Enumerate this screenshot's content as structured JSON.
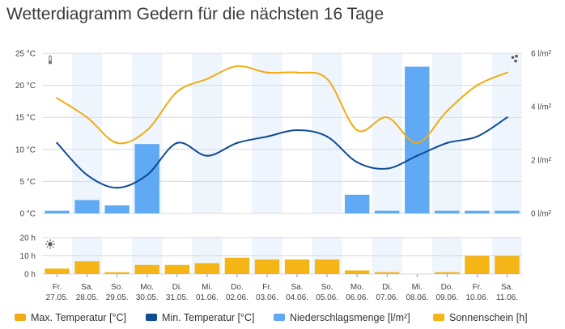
{
  "title": "Wetterdiagramm Gedern für die nächsten 16 Tage",
  "colors": {
    "max_temp": "#f2ab12",
    "min_temp": "#0f4c96",
    "precip": "#5fa9f5",
    "sunshine": "#f5b516",
    "stripe": "#eef5fd",
    "grid": "#d9d9d9"
  },
  "icons": {
    "temperature": "thermometer-icon",
    "precipitation": "raindrops-icon",
    "sunshine": "sun-icon"
  },
  "chart_data": [
    {
      "type": "line+bar",
      "categories": [
        [
          "Fr.",
          "27.05."
        ],
        [
          "Sa.",
          "28.05."
        ],
        [
          "So.",
          "29.05."
        ],
        [
          "Mo.",
          "30.05."
        ],
        [
          "Di.",
          "31.05."
        ],
        [
          "Mi.",
          "01.06."
        ],
        [
          "Do.",
          "02.06."
        ],
        [
          "Fr.",
          "03.06."
        ],
        [
          "Sa.",
          "04.06."
        ],
        [
          "So.",
          "05.06."
        ],
        [
          "Mo.",
          "06.06."
        ],
        [
          "Di.",
          "07.06."
        ],
        [
          "Mi.",
          "08.06."
        ],
        [
          "Do.",
          "09.06."
        ],
        [
          "Fr.",
          "10.06."
        ],
        [
          "Sa.",
          "11.06."
        ]
      ],
      "y_left": {
        "ticks": [
          "0 °C",
          "5 °C",
          "10 °C",
          "15 °C",
          "20 °C",
          "25 °C"
        ],
        "range": [
          0,
          25
        ]
      },
      "y_right": {
        "ticks": [
          "0 l/m²",
          "2 l/m²",
          "4 l/m²",
          "6 l/m²"
        ],
        "range": [
          0,
          6
        ]
      },
      "series": [
        {
          "name": "Max. Temperatur [°C]",
          "kind": "line",
          "axis": "left",
          "values": [
            18,
            15,
            11,
            13,
            19,
            21,
            23,
            22,
            22,
            21,
            13,
            15,
            11,
            16,
            20,
            22
          ]
        },
        {
          "name": "Min. Temperatur [°C]",
          "kind": "line",
          "axis": "left",
          "values": [
            11,
            6,
            4,
            6,
            11,
            9,
            11,
            12,
            13,
            12,
            8,
            7,
            9,
            11,
            12,
            15
          ]
        },
        {
          "name": "Niederschlagsmenge [l/m²]",
          "kind": "bar",
          "axis": "right",
          "values": [
            0.1,
            0.5,
            0.3,
            2.6,
            0,
            0,
            0,
            0,
            0,
            0,
            0.7,
            0.1,
            5.5,
            0.1,
            0.1,
            0.1
          ]
        }
      ]
    },
    {
      "type": "bar",
      "y": {
        "ticks": [
          "0 h",
          "10 h",
          "20 h"
        ],
        "range": [
          0,
          20
        ]
      },
      "series": [
        {
          "name": "Sonnenschein [h]",
          "values": [
            3,
            7,
            1,
            5,
            5,
            6,
            9,
            8,
            8,
            8,
            2,
            1,
            0,
            1,
            10,
            10
          ]
        }
      ]
    }
  ]
}
